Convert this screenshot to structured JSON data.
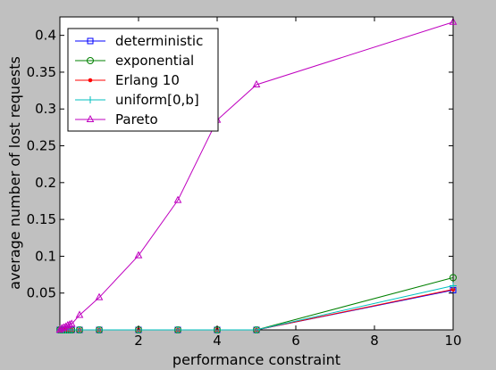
{
  "chart_data": {
    "type": "line",
    "title": "",
    "xlabel": "performance constraint",
    "ylabel": "average number of lost requests",
    "xlim": [
      0,
      10
    ],
    "ylim": [
      0,
      0.425
    ],
    "xticks": [
      2,
      4,
      6,
      8,
      10
    ],
    "xtick_labels": [
      "2",
      "4",
      "6",
      "8",
      "10"
    ],
    "yticks": [
      0.05,
      0.1,
      0.15,
      0.2,
      0.25,
      0.3,
      0.35,
      0.4
    ],
    "ytick_labels": [
      "0.05",
      "0.1",
      "0.15",
      "0.2",
      "0.25",
      "0.3",
      "0.35",
      "0.4"
    ],
    "grid": false,
    "legend_position": "top-left",
    "x": [
      0,
      0.05,
      0.1,
      0.15,
      0.2,
      0.25,
      0.3,
      0.5,
      1,
      2,
      3,
      4,
      5,
      10
    ],
    "series": [
      {
        "name": "deterministic",
        "color": "#0000ff",
        "marker": "square",
        "values": [
          0,
          0,
          0,
          0,
          0,
          0,
          0,
          0,
          0,
          0,
          0,
          0,
          0,
          0.054
        ]
      },
      {
        "name": "exponential",
        "color": "#008000",
        "marker": "circle",
        "values": [
          0,
          0,
          0,
          0,
          0,
          0,
          0,
          0,
          0,
          0,
          0,
          0,
          0,
          0.071
        ]
      },
      {
        "name": "Erlang 10",
        "color": "#ff0000",
        "marker": "dot",
        "values": [
          0,
          0,
          0,
          0,
          0,
          0,
          0,
          0,
          0,
          0,
          0,
          0,
          0,
          0.055
        ]
      },
      {
        "name": "uniform[0,b]",
        "color": "#00bfbf",
        "marker": "plus",
        "values": [
          0,
          0,
          0,
          0,
          0,
          0,
          0,
          0,
          0,
          0,
          0,
          0,
          0,
          0.06
        ]
      },
      {
        "name": "Pareto",
        "color": "#bf00bf",
        "marker": "triangle",
        "values": [
          0,
          0.002,
          0.003,
          0.004,
          0.006,
          0.007,
          0.008,
          0.02,
          0.044,
          0.101,
          0.176,
          0.285,
          0.333,
          0.418
        ]
      }
    ]
  }
}
